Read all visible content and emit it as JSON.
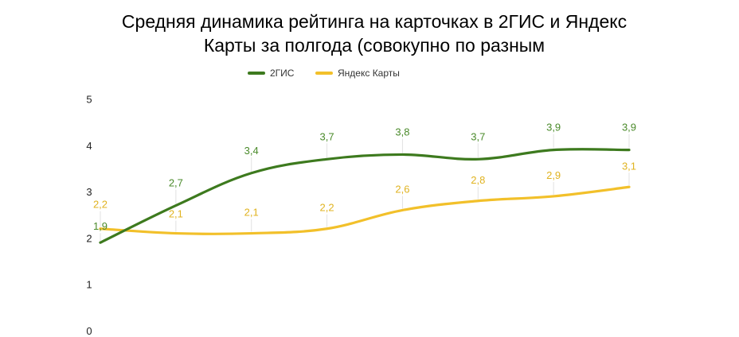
{
  "chart_data": {
    "type": "line",
    "title": "Средняя динамика рейтинга на карточках в 2ГИС и Яндекс Карты за полгода (совокупно по разным",
    "xlabel": "",
    "ylabel": "",
    "ylim": [
      0,
      5
    ],
    "y_ticks": [
      "0",
      "1",
      "2",
      "3",
      "4",
      "5"
    ],
    "grid": false,
    "legend_position": "top-center",
    "smooth": true,
    "series": [
      {
        "name": "2ГИС",
        "color": "#3d7a1e",
        "values": [
          1.9,
          2.7,
          3.4,
          3.7,
          3.8,
          3.7,
          3.9,
          3.9
        ],
        "labels": [
          "1,9",
          "2,7",
          "3,4",
          "3,7",
          "3,8",
          "3,7",
          "3,9",
          "3,9"
        ]
      },
      {
        "name": "Яндекс Карты",
        "color": "#f2c02a",
        "values": [
          2.2,
          2.1,
          2.1,
          2.2,
          2.6,
          2.8,
          2.9,
          3.1
        ],
        "labels": [
          "2,2",
          "2,1",
          "2,1",
          "2,2",
          "2,6",
          "2,8",
          "2,9",
          "3,1"
        ]
      }
    ]
  }
}
